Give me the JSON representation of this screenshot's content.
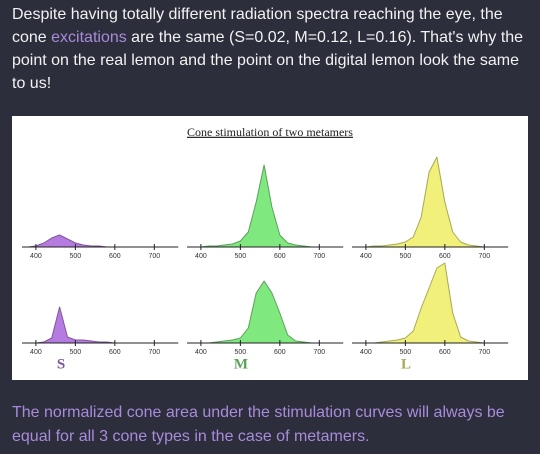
{
  "intro": {
    "before": "Despite having totally different radiation spectra reaching the eye, the cone ",
    "highlight": "excitations",
    "after": " are the same (S=0.02, M=0.12, L=0.16). That's why the point on the real lemon and the point on the digital lemon look the same to us!"
  },
  "figure": {
    "title": "Cone stimulation of two metamers"
  },
  "chart_data": [
    {
      "type": "area",
      "color": "#b57be0",
      "x": [
        380,
        400,
        420,
        440,
        460,
        480,
        500,
        520,
        540,
        560,
        580,
        600,
        620,
        640,
        660,
        680,
        700,
        720,
        740,
        760
      ],
      "values": [
        0,
        0.01,
        0.04,
        0.09,
        0.12,
        0.08,
        0.04,
        0.02,
        0.01,
        0.01,
        0,
        0,
        0,
        0,
        0,
        0,
        0,
        0,
        0,
        0
      ],
      "xlim": [
        380,
        760
      ],
      "xticks": [
        400,
        500,
        600,
        700
      ],
      "ylim": [
        0,
        1
      ]
    },
    {
      "type": "area",
      "color": "#7fe87f",
      "x": [
        380,
        400,
        420,
        440,
        460,
        480,
        500,
        520,
        540,
        560,
        580,
        600,
        620,
        640,
        660,
        680,
        700,
        720,
        740,
        760
      ],
      "values": [
        0,
        0,
        0.01,
        0.01,
        0.02,
        0.03,
        0.06,
        0.15,
        0.45,
        0.82,
        0.4,
        0.12,
        0.04,
        0.02,
        0.01,
        0,
        0,
        0,
        0,
        0
      ],
      "xlim": [
        380,
        760
      ],
      "xticks": [
        400,
        500,
        600,
        700
      ],
      "ylim": [
        0,
        1
      ]
    },
    {
      "type": "area",
      "color": "#f0f07a",
      "x": [
        380,
        400,
        420,
        440,
        460,
        480,
        500,
        520,
        540,
        560,
        580,
        600,
        620,
        640,
        660,
        680,
        700,
        720,
        740,
        760
      ],
      "values": [
        0,
        0,
        0.01,
        0.01,
        0.02,
        0.03,
        0.05,
        0.1,
        0.3,
        0.75,
        0.9,
        0.45,
        0.15,
        0.05,
        0.02,
        0.01,
        0,
        0,
        0,
        0
      ],
      "xlim": [
        380,
        760
      ],
      "xticks": [
        400,
        500,
        600,
        700
      ],
      "ylim": [
        0,
        1
      ]
    },
    {
      "type": "area",
      "color": "#b57be0",
      "label": "S",
      "x": [
        380,
        400,
        420,
        440,
        460,
        480,
        500,
        520,
        540,
        560,
        580,
        600,
        620,
        640,
        660,
        680,
        700,
        720,
        740,
        760
      ],
      "values": [
        0,
        0,
        0.01,
        0.05,
        0.36,
        0.06,
        0.03,
        0.03,
        0.02,
        0.01,
        0.01,
        0,
        0,
        0,
        0,
        0,
        0,
        0,
        0,
        0
      ],
      "xlim": [
        380,
        760
      ],
      "xticks": [
        400,
        500,
        600,
        700
      ],
      "ylim": [
        0,
        1
      ]
    },
    {
      "type": "area",
      "color": "#7fe87f",
      "label": "M",
      "x": [
        380,
        400,
        420,
        440,
        460,
        480,
        500,
        520,
        540,
        560,
        580,
        600,
        620,
        640,
        660,
        680,
        700,
        720,
        740,
        760
      ],
      "values": [
        0,
        0,
        0,
        0.01,
        0.02,
        0.03,
        0.05,
        0.15,
        0.5,
        0.62,
        0.5,
        0.3,
        0.08,
        0.02,
        0.01,
        0,
        0,
        0,
        0,
        0
      ],
      "xlim": [
        380,
        760
      ],
      "xticks": [
        400,
        500,
        600,
        700
      ],
      "ylim": [
        0,
        1
      ]
    },
    {
      "type": "area",
      "color": "#f0f07a",
      "label": "L",
      "x": [
        380,
        400,
        420,
        440,
        460,
        480,
        500,
        520,
        540,
        560,
        580,
        600,
        620,
        640,
        660,
        680,
        700,
        720,
        740,
        760
      ],
      "values": [
        0,
        0,
        0,
        0.01,
        0.02,
        0.03,
        0.05,
        0.12,
        0.35,
        0.55,
        0.75,
        0.8,
        0.3,
        0.06,
        0.02,
        0.01,
        0,
        0,
        0,
        0
      ],
      "xlim": [
        380,
        760
      ],
      "xticks": [
        400,
        500,
        600,
        700
      ],
      "ylim": [
        0,
        1
      ]
    }
  ],
  "outro": "The normalized cone area under the stimulation curves will always be equal for all 3 cone types in the case of metamers."
}
